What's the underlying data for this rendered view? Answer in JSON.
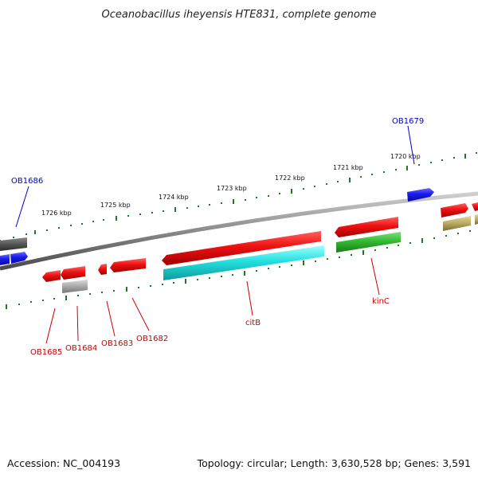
{
  "title": "Oceanobacillus iheyensis HTE831, complete genome",
  "footer": {
    "accession": "Accession: NC_004193",
    "summary": "Topology: circular; Length: 3,630,528 bp; Genes: 3,591"
  },
  "scale_labels": [
    "1726 kbp",
    "1725 kbp",
    "1724 kbp",
    "1723 kbp",
    "1722 kbp",
    "1721 kbp",
    "1720 kbp"
  ],
  "gene_labels": {
    "OB1686": "OB1686",
    "OB1679": "OB1679",
    "OB1685": "OB1685",
    "OB1684": "OB1684",
    "OB1683": "OB1683",
    "OB1682": "OB1682",
    "citB": "citB",
    "kinC": "kinC"
  },
  "colors": {
    "red": "#ee1111",
    "cyan": "#22e0e0",
    "green": "#33bb33",
    "blue": "#1a1aee",
    "gray": "#9a9a9a",
    "dark": "#555555",
    "olive": "#b8a860",
    "tick": "#1f7a1f",
    "label_red": "#cc0000",
    "label_blue": "#0000cc"
  }
}
